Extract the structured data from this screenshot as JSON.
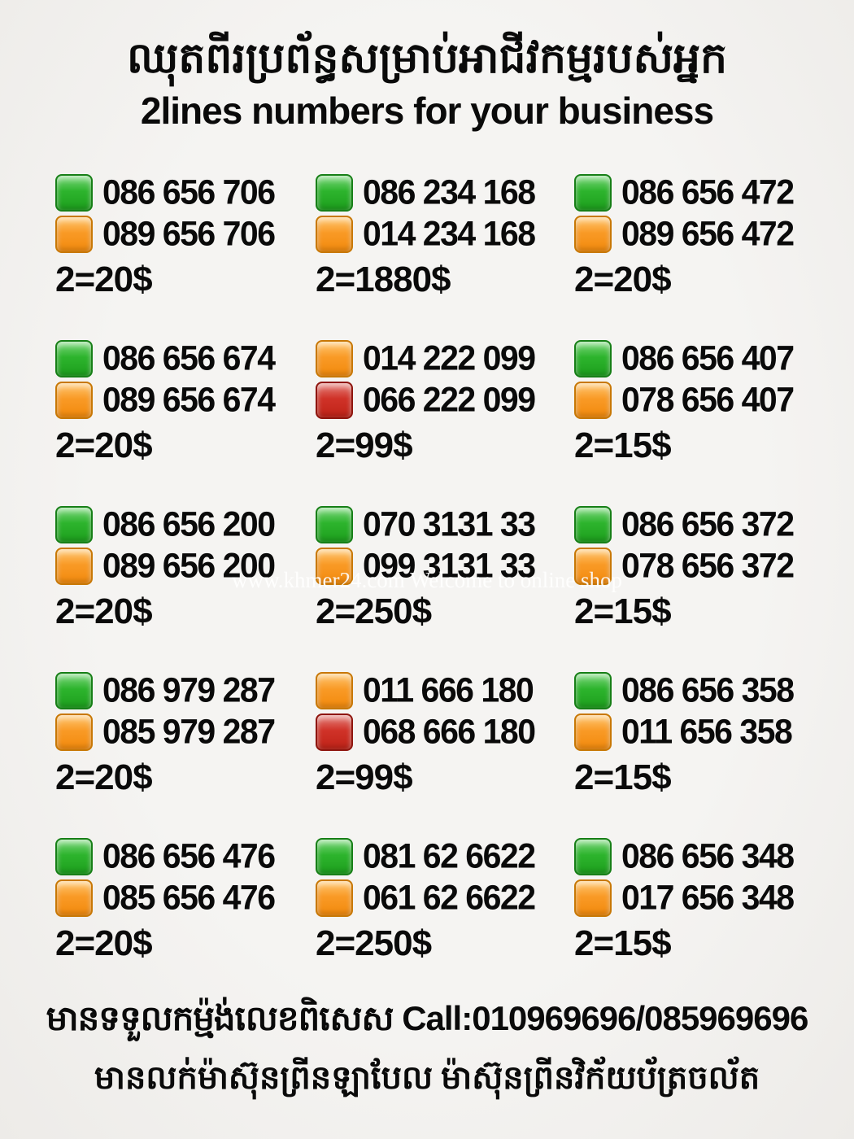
{
  "header": {
    "title_khmer": "ឈុតពីរប្រព័ន្ធសម្រាប់អាជីវកម្មរបស់អ្នក",
    "subtitle": "2lines numbers for your business"
  },
  "watermark": "www.khmer24.com Welcome to online shop",
  "colors": {
    "green": "#2db42d",
    "orange": "#f8941f",
    "red": "#cc2a1e",
    "background": "#f2f1ef",
    "text": "#0a0a0a",
    "watermark_text": "#ffffff"
  },
  "listings": [
    {
      "lines": [
        {
          "color": "green",
          "number": "086 656 706"
        },
        {
          "color": "orange",
          "number": "089 656 706"
        }
      ],
      "price": "2=20$"
    },
    {
      "lines": [
        {
          "color": "green",
          "number": "086 234 168"
        },
        {
          "color": "orange",
          "number": "014 234 168"
        }
      ],
      "price": "2=1880$"
    },
    {
      "lines": [
        {
          "color": "green",
          "number": "086 656 472"
        },
        {
          "color": "orange",
          "number": "089 656 472"
        }
      ],
      "price": "2=20$"
    },
    {
      "lines": [
        {
          "color": "green",
          "number": "086 656 674"
        },
        {
          "color": "orange",
          "number": "089 656 674"
        }
      ],
      "price": "2=20$"
    },
    {
      "lines": [
        {
          "color": "orange",
          "number": "014 222 099"
        },
        {
          "color": "red",
          "number": "066 222 099"
        }
      ],
      "price": "2=99$"
    },
    {
      "lines": [
        {
          "color": "green",
          "number": "086 656 407"
        },
        {
          "color": "orange",
          "number": "078 656 407"
        }
      ],
      "price": "2=15$"
    },
    {
      "lines": [
        {
          "color": "green",
          "number": "086 656 200"
        },
        {
          "color": "orange",
          "number": "089 656 200"
        }
      ],
      "price": "2=20$"
    },
    {
      "lines": [
        {
          "color": "green",
          "number": "070 3131 33"
        },
        {
          "color": "orange",
          "number": "099 3131 33"
        }
      ],
      "price": "2=250$"
    },
    {
      "lines": [
        {
          "color": "green",
          "number": "086 656 372"
        },
        {
          "color": "orange",
          "number": "078 656 372"
        }
      ],
      "price": "2=15$"
    },
    {
      "lines": [
        {
          "color": "green",
          "number": "086 979 287"
        },
        {
          "color": "orange",
          "number": "085 979 287"
        }
      ],
      "price": "2=20$"
    },
    {
      "lines": [
        {
          "color": "orange",
          "number": "011 666 180"
        },
        {
          "color": "red",
          "number": "068 666 180"
        }
      ],
      "price": "2=99$"
    },
    {
      "lines": [
        {
          "color": "green",
          "number": "086 656 358"
        },
        {
          "color": "orange",
          "number": "011 656 358"
        }
      ],
      "price": "2=15$"
    },
    {
      "lines": [
        {
          "color": "green",
          "number": "086 656 476"
        },
        {
          "color": "orange",
          "number": "085 656 476"
        }
      ],
      "price": "2=20$"
    },
    {
      "lines": [
        {
          "color": "green",
          "number": "081 62 6622"
        },
        {
          "color": "orange",
          "number": "061 62 6622"
        }
      ],
      "price": "2=250$"
    },
    {
      "lines": [
        {
          "color": "green",
          "number": "086 656 348"
        },
        {
          "color": "orange",
          "number": "017 656 348"
        }
      ],
      "price": "2=15$"
    }
  ],
  "footer": {
    "line1": "មានទទួលកម្ម៉ង់លេខពិសេស Call:010969696/085969696",
    "line2": "មានលក់ម៉ាស៊ុនព្រីនឡាបែល ម៉ាស៊ុនព្រីនវិក័យប័ត្រចល័ត"
  }
}
